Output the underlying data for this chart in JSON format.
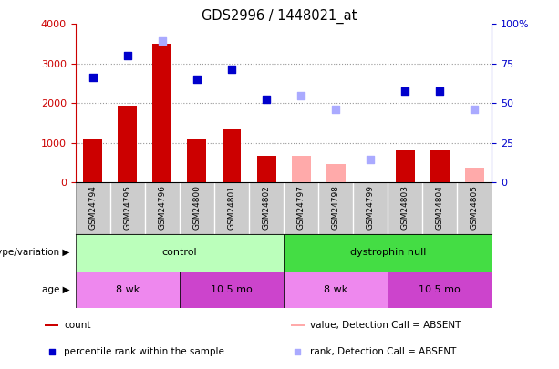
{
  "title": "GDS2996 / 1448021_at",
  "samples": [
    "GSM24794",
    "GSM24795",
    "GSM24796",
    "GSM24800",
    "GSM24801",
    "GSM24802",
    "GSM24797",
    "GSM24798",
    "GSM24799",
    "GSM24803",
    "GSM24804",
    "GSM24805"
  ],
  "count_values": [
    1100,
    1950,
    3500,
    1100,
    1350,
    680,
    null,
    null,
    null,
    820,
    820,
    null
  ],
  "count_absent": [
    null,
    null,
    null,
    null,
    null,
    null,
    680,
    470,
    null,
    null,
    null,
    380
  ],
  "rank_present": [
    2650,
    3200,
    null,
    2600,
    2850,
    2100,
    null,
    null,
    null,
    2300,
    2300,
    null
  ],
  "rank_absent": [
    null,
    null,
    3570,
    null,
    null,
    null,
    2200,
    1850,
    590,
    null,
    null,
    1850
  ],
  "ylim_left": [
    0,
    4000
  ],
  "ylim_right": [
    0,
    100
  ],
  "yticks_left": [
    0,
    1000,
    2000,
    3000,
    4000
  ],
  "yticks_right": [
    0,
    25,
    50,
    75,
    100
  ],
  "yticklabels_right": [
    "0",
    "25",
    "50",
    "75",
    "100%"
  ],
  "bar_width": 0.55,
  "count_color": "#cc0000",
  "count_absent_color": "#ffaaaa",
  "rank_present_color": "#0000cc",
  "rank_absent_color": "#aaaaff",
  "genotype_groups": [
    {
      "label": "control",
      "start": 0,
      "end": 5,
      "color": "#bbffbb"
    },
    {
      "label": "dystrophin null",
      "start": 6,
      "end": 11,
      "color": "#44dd44"
    }
  ],
  "age_groups": [
    {
      "label": "8 wk",
      "start": 0,
      "end": 2,
      "color": "#ee88ee"
    },
    {
      "label": "10.5 mo",
      "start": 3,
      "end": 5,
      "color": "#cc44cc"
    },
    {
      "label": "8 wk",
      "start": 6,
      "end": 8,
      "color": "#ee88ee"
    },
    {
      "label": "10.5 mo",
      "start": 9,
      "end": 11,
      "color": "#cc44cc"
    }
  ],
  "legend_items": [
    {
      "label": "count",
      "color": "#cc0000",
      "type": "bar"
    },
    {
      "label": "percentile rank within the sample",
      "color": "#0000cc",
      "type": "scatter"
    },
    {
      "label": "value, Detection Call = ABSENT",
      "color": "#ffaaaa",
      "type": "bar"
    },
    {
      "label": "rank, Detection Call = ABSENT",
      "color": "#aaaaff",
      "type": "scatter"
    }
  ],
  "xtick_bg_color": "#cccccc",
  "plot_bg_color": "#ffffff",
  "dotted_line_color": "#999999"
}
